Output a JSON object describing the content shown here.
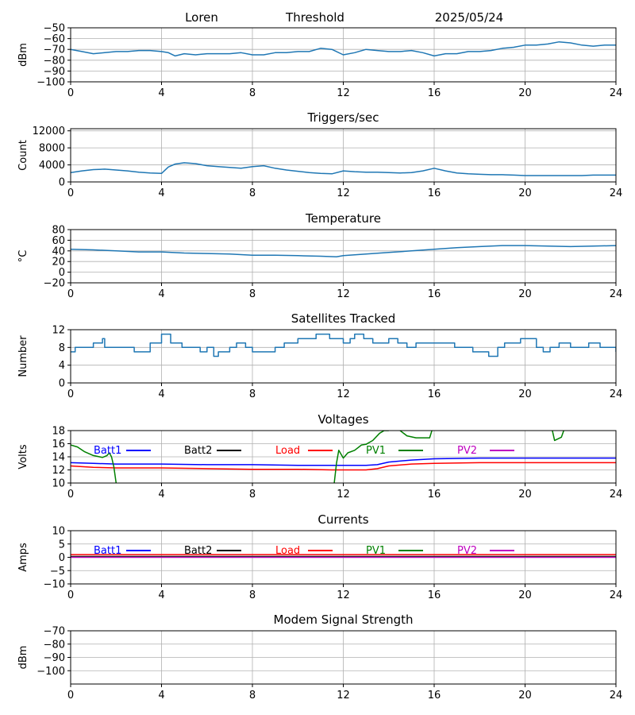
{
  "header": {
    "station": "Loren",
    "panel_title": "Threshold",
    "date": "2025/05/24"
  },
  "chart_data": [
    {
      "id": "threshold",
      "type": "line",
      "title": "",
      "xlabel": "",
      "ylabel": "dBm",
      "xlim": [
        0,
        24
      ],
      "ylim": [
        -100,
        -50
      ],
      "xticks": [
        0,
        4,
        8,
        12,
        16,
        20,
        24
      ],
      "yticks": [
        -100,
        -90,
        -80,
        -70,
        -60,
        -50
      ],
      "ytick_labels": [
        "−100",
        "−90",
        "−80",
        "−70",
        "−60",
        "−50"
      ],
      "grid": true,
      "series": [
        {
          "color": "#1f77b4",
          "x": [
            0,
            0.5,
            1,
            1.5,
            2,
            2.5,
            3,
            3.5,
            4,
            4.3,
            4.6,
            5,
            5.5,
            6,
            6.5,
            7,
            7.5,
            8,
            8.5,
            9,
            9.5,
            10,
            10.5,
            11,
            11.5,
            12,
            12.5,
            13,
            13.5,
            14,
            14.5,
            15,
            15.5,
            16,
            16.5,
            17,
            17.5,
            18,
            18.5,
            19,
            19.5,
            20,
            20.5,
            21,
            21.5,
            22,
            22.5,
            23,
            23.5,
            24
          ],
          "y": [
            -70,
            -72,
            -74,
            -73,
            -72,
            -72,
            -71,
            -71,
            -72,
            -73,
            -76,
            -74,
            -75,
            -74,
            -74,
            -74,
            -73,
            -75,
            -75,
            -73,
            -73,
            -72,
            -72,
            -69,
            -70,
            -75,
            -73,
            -70,
            -71,
            -72,
            -72,
            -71,
            -73,
            -76,
            -74,
            -74,
            -72,
            -72,
            -71,
            -69,
            -68,
            -66,
            -66,
            -65,
            -63,
            -64,
            -66,
            -67,
            -66,
            -66
          ]
        }
      ]
    },
    {
      "id": "triggers",
      "type": "line",
      "title": "Triggers/sec",
      "xlabel": "",
      "ylabel": "Count",
      "xlim": [
        0,
        24
      ],
      "ylim": [
        0,
        12500
      ],
      "xticks": [
        0,
        4,
        8,
        12,
        16,
        20,
        24
      ],
      "yticks": [
        0,
        4000,
        8000,
        12000
      ],
      "ytick_labels": [
        "0",
        "4000",
        "8000",
        "12000"
      ],
      "grid": true,
      "series": [
        {
          "color": "#1f77b4",
          "x": [
            0,
            0.5,
            1,
            1.5,
            2,
            2.5,
            3,
            3.5,
            4,
            4.3,
            4.6,
            5,
            5.5,
            6,
            6.5,
            7,
            7.5,
            8,
            8.5,
            9,
            9.5,
            10,
            10.5,
            11,
            11.5,
            12,
            12.5,
            13,
            13.5,
            14,
            14.5,
            15,
            15.5,
            16,
            16.5,
            17,
            17.5,
            18,
            18.5,
            19,
            19.5,
            20,
            20.5,
            21,
            21.5,
            22,
            22.5,
            23,
            23.5,
            24
          ],
          "y": [
            2200,
            2600,
            2900,
            3000,
            2800,
            2600,
            2300,
            2100,
            2000,
            3500,
            4200,
            4500,
            4300,
            3800,
            3600,
            3400,
            3200,
            3600,
            3800,
            3200,
            2800,
            2500,
            2200,
            2000,
            1900,
            2600,
            2400,
            2300,
            2300,
            2200,
            2100,
            2200,
            2600,
            3200,
            2600,
            2100,
            1900,
            1800,
            1700,
            1700,
            1600,
            1500,
            1500,
            1500,
            1500,
            1500,
            1500,
            1600,
            1600,
            1600
          ]
        }
      ]
    },
    {
      "id": "temperature",
      "type": "line",
      "title": "Temperature",
      "xlabel": "",
      "ylabel": "°C",
      "xlim": [
        0,
        24
      ],
      "ylim": [
        -20,
        80
      ],
      "xticks": [
        0,
        4,
        8,
        12,
        16,
        20,
        24
      ],
      "yticks": [
        -20,
        0,
        20,
        40,
        60,
        80
      ],
      "ytick_labels": [
        "−20",
        "0",
        "20",
        "40",
        "60",
        "80"
      ],
      "grid": true,
      "series": [
        {
          "color": "#1f77b4",
          "x": [
            0,
            1,
            2,
            3,
            4,
            5,
            6,
            7,
            8,
            9,
            10,
            11,
            11.7,
            12,
            13,
            14,
            15,
            16,
            17,
            18,
            19,
            20,
            21,
            22,
            23,
            24
          ],
          "y": [
            43,
            42,
            40,
            38,
            38,
            36,
            35,
            34,
            32,
            32,
            31,
            30,
            29,
            31,
            34,
            37,
            40,
            43,
            46,
            48,
            50,
            50,
            49,
            48,
            49,
            50
          ]
        }
      ]
    },
    {
      "id": "satellites",
      "type": "line",
      "title": "Satellites Tracked",
      "xlabel": "",
      "ylabel": "Number",
      "xlim": [
        0,
        24
      ],
      "ylim": [
        0,
        12
      ],
      "xticks": [
        0,
        4,
        8,
        12,
        16,
        20,
        24
      ],
      "yticks": [
        0,
        4,
        8,
        12
      ],
      "ytick_labels": [
        "0",
        "4",
        "8",
        "12"
      ],
      "grid": true,
      "series": [
        {
          "color": "#1f77b4",
          "step": true,
          "x": [
            0,
            0.2,
            0.5,
            1,
            1.2,
            1.4,
            1.5,
            1.7,
            2.6,
            2.8,
            3.5,
            3.9,
            4.0,
            4.2,
            4.4,
            4.9,
            5.3,
            5.7,
            6.0,
            6.3,
            6.5,
            7.0,
            7.3,
            7.7,
            8.0,
            8.2,
            8.7,
            9.0,
            9.4,
            9.8,
            10.0,
            10.4,
            10.8,
            11.0,
            11.4,
            11.8,
            12.0,
            12.3,
            12.5,
            12.9,
            13.3,
            13.7,
            14.0,
            14.4,
            14.8,
            15.2,
            15.6,
            16.0,
            16.3,
            16.6,
            16.9,
            17.3,
            17.7,
            17.9,
            18.4,
            18.8,
            19.1,
            19.4,
            19.8,
            20.1,
            20.5,
            20.8,
            21.1,
            21.5,
            22.0,
            22.4,
            22.8,
            23.3,
            23.7,
            24.0
          ],
          "y": [
            7,
            8,
            8,
            9,
            9,
            10,
            8,
            8,
            8,
            7,
            9,
            9,
            11,
            11,
            9,
            8,
            8,
            7,
            8,
            6,
            7,
            8,
            9,
            8,
            7,
            7,
            7,
            8,
            9,
            9,
            10,
            10,
            11,
            11,
            10,
            10,
            9,
            10,
            11,
            10,
            9,
            9,
            10,
            9,
            8,
            9,
            9,
            9,
            9,
            9,
            8,
            8,
            7,
            7,
            6,
            8,
            9,
            9,
            10,
            10,
            8,
            7,
            8,
            9,
            8,
            8,
            9,
            8,
            8,
            7
          ]
        }
      ]
    },
    {
      "id": "voltages",
      "type": "line",
      "title": "Voltages",
      "xlabel": "",
      "ylabel": "Volts",
      "xlim": [
        0,
        24
      ],
      "ylim": [
        10,
        18
      ],
      "xticks": [
        0,
        4,
        8,
        12,
        16,
        20,
        24
      ],
      "yticks": [
        10,
        12,
        14,
        16,
        18
      ],
      "ytick_labels": [
        "10",
        "12",
        "14",
        "16",
        "18"
      ],
      "grid": true,
      "legend_position": "inside-top",
      "series": [
        {
          "name": "Batt1",
          "color": "#0000ff",
          "x": [
            0,
            1,
            2,
            4,
            6,
            8,
            10,
            11.5,
            12,
            13,
            13.5,
            14,
            15,
            16,
            18,
            20,
            22,
            24
          ],
          "y": [
            13.1,
            13.0,
            12.9,
            12.9,
            12.8,
            12.8,
            12.7,
            12.7,
            12.7,
            12.7,
            12.8,
            13.2,
            13.5,
            13.7,
            13.8,
            13.8,
            13.8,
            13.8
          ]
        },
        {
          "name": "Batt2",
          "color": "#000000",
          "x": [],
          "y": []
        },
        {
          "name": "Load",
          "color": "#ff0000",
          "x": [
            0,
            1,
            2,
            4,
            6,
            8,
            10,
            11.5,
            12,
            13,
            13.5,
            14,
            15,
            16,
            18,
            20,
            22,
            24
          ],
          "y": [
            12.6,
            12.4,
            12.3,
            12.3,
            12.2,
            12.1,
            12.1,
            12.0,
            12.0,
            12.0,
            12.2,
            12.6,
            12.9,
            13.0,
            13.1,
            13.1,
            13.1,
            13.1
          ],
          "segments": []
        },
        {
          "name": "PV1",
          "color": "#008000",
          "segments": [
            {
              "x": [
                0,
                0.3,
                0.6,
                1.0,
                1.4,
                1.6,
                1.7,
                1.8,
                1.9,
                2.0
              ],
              "y": [
                15.8,
                15.5,
                14.8,
                14.2,
                13.9,
                14.2,
                14.6,
                14.0,
                12.5,
                10
              ]
            },
            {
              "x": [
                11.6,
                11.7,
                11.8,
                12.0,
                12.2,
                12.5,
                12.8,
                13.0,
                13.3,
                13.6,
                13.8,
                14.0
              ],
              "y": [
                10,
                13.0,
                15.0,
                13.8,
                14.6,
                15.0,
                15.8,
                15.9,
                16.5,
                17.6,
                18.0,
                18.0
              ]
            },
            {
              "x": [
                14.5,
                14.8,
                15.2,
                15.8,
                15.9
              ],
              "y": [
                18.0,
                17.2,
                16.9,
                16.9,
                18.0
              ]
            },
            {
              "x": [
                21.2,
                21.3,
                21.6,
                21.7
              ],
              "y": [
                18.0,
                16.5,
                17.0,
                18.0
              ]
            }
          ]
        },
        {
          "name": "PV2",
          "color": "#bf00bf",
          "x": [],
          "y": []
        }
      ]
    },
    {
      "id": "currents",
      "type": "line",
      "title": "Currents",
      "xlabel": "",
      "ylabel": "Amps",
      "xlim": [
        0,
        24
      ],
      "ylim": [
        -10,
        10
      ],
      "xticks": [
        0,
        4,
        8,
        12,
        16,
        20,
        24
      ],
      "yticks": [
        -10,
        -5,
        0,
        5,
        10
      ],
      "ytick_labels": [
        "−10",
        "−5",
        "0",
        "5",
        "10"
      ],
      "grid": true,
      "legend_position": "inside-top",
      "series": [
        {
          "name": "Batt1",
          "color": "#0000ff",
          "x": [
            0,
            24
          ],
          "y": [
            0.2,
            0.2
          ]
        },
        {
          "name": "Batt2",
          "color": "#000000",
          "x": [
            0,
            24
          ],
          "y": [
            0.3,
            0.3
          ]
        },
        {
          "name": "Load",
          "color": "#ff0000",
          "x": [
            0,
            24
          ],
          "y": [
            1.0,
            1.0
          ]
        },
        {
          "name": "PV1",
          "color": "#008000",
          "x": [
            0,
            24
          ],
          "y": [
            0.1,
            0.1
          ]
        },
        {
          "name": "PV2",
          "color": "#bf00bf",
          "x": [
            0,
            24
          ],
          "y": [
            0.0,
            0.0
          ]
        }
      ]
    },
    {
      "id": "modem",
      "type": "line",
      "title": "Modem Signal Strength",
      "xlabel": "",
      "ylabel": "dBm",
      "xlim": [
        0,
        24
      ],
      "ylim": [
        -110,
        -70
      ],
      "xticks": [
        0,
        4,
        8,
        12,
        16,
        20,
        24
      ],
      "yticks": [
        -100,
        -90,
        -80,
        -70
      ],
      "ytick_labels": [
        "−100",
        "−90",
        "−80",
        "−70"
      ],
      "grid": true,
      "series": []
    }
  ]
}
